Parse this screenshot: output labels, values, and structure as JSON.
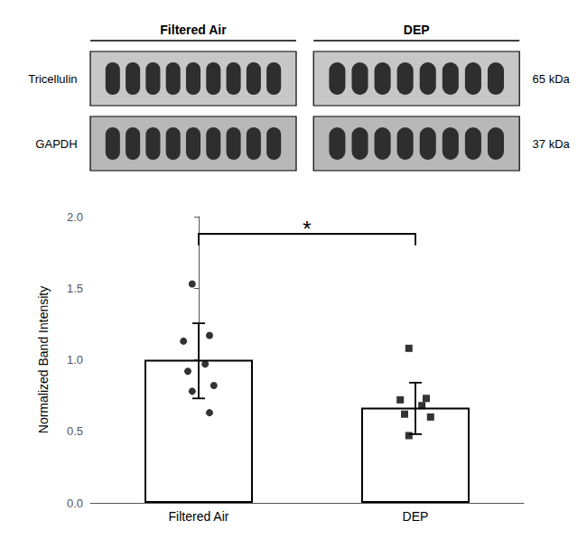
{
  "chart_data": {
    "type": "bar",
    "categories": [
      "Filtered Air",
      "DEP"
    ],
    "values": [
      1.0,
      0.665
    ],
    "error_upper": [
      0.255,
      0.175
    ],
    "error_lower": [
      0.27,
      0.185
    ],
    "color": "#ffffff",
    "points": [
      {
        "category": "Filtered Air",
        "values": [
          1.53,
          1.17,
          1.13,
          0.97,
          0.92,
          0.82,
          0.78,
          0.63
        ],
        "marker": "circle",
        "color": "#000000"
      },
      {
        "category": "DEP",
        "values": [
          1.08,
          0.73,
          0.72,
          0.68,
          0.62,
          0.6,
          0.47
        ],
        "marker": "square",
        "color": "#000000"
      }
    ],
    "ylabel": "Normalized Band Intensity",
    "ylim": [
      0.0,
      2.0
    ],
    "yticks": [
      {
        "value": 0,
        "label": "0.0"
      },
      0.5,
      {
        "value": 1,
        "label": "1.0"
      },
      1.5,
      {
        "value": 2,
        "label": "2.0"
      }
    ],
    "grid": false,
    "significance": {
      "text": "*",
      "between": [
        "Filtered Air",
        "DEP"
      ],
      "y": 1.88,
      "tip_y": 1.8
    },
    "blot": {
      "groups": [
        {
          "label": "Filtered Air",
          "lanes": 9
        },
        {
          "label": "DEP",
          "lanes": 8
        }
      ],
      "rows": [
        {
          "label": "Tricellulin",
          "size": "65 kDa"
        },
        {
          "label": "GAPDH",
          "size": "37 kDa"
        }
      ]
    }
  }
}
